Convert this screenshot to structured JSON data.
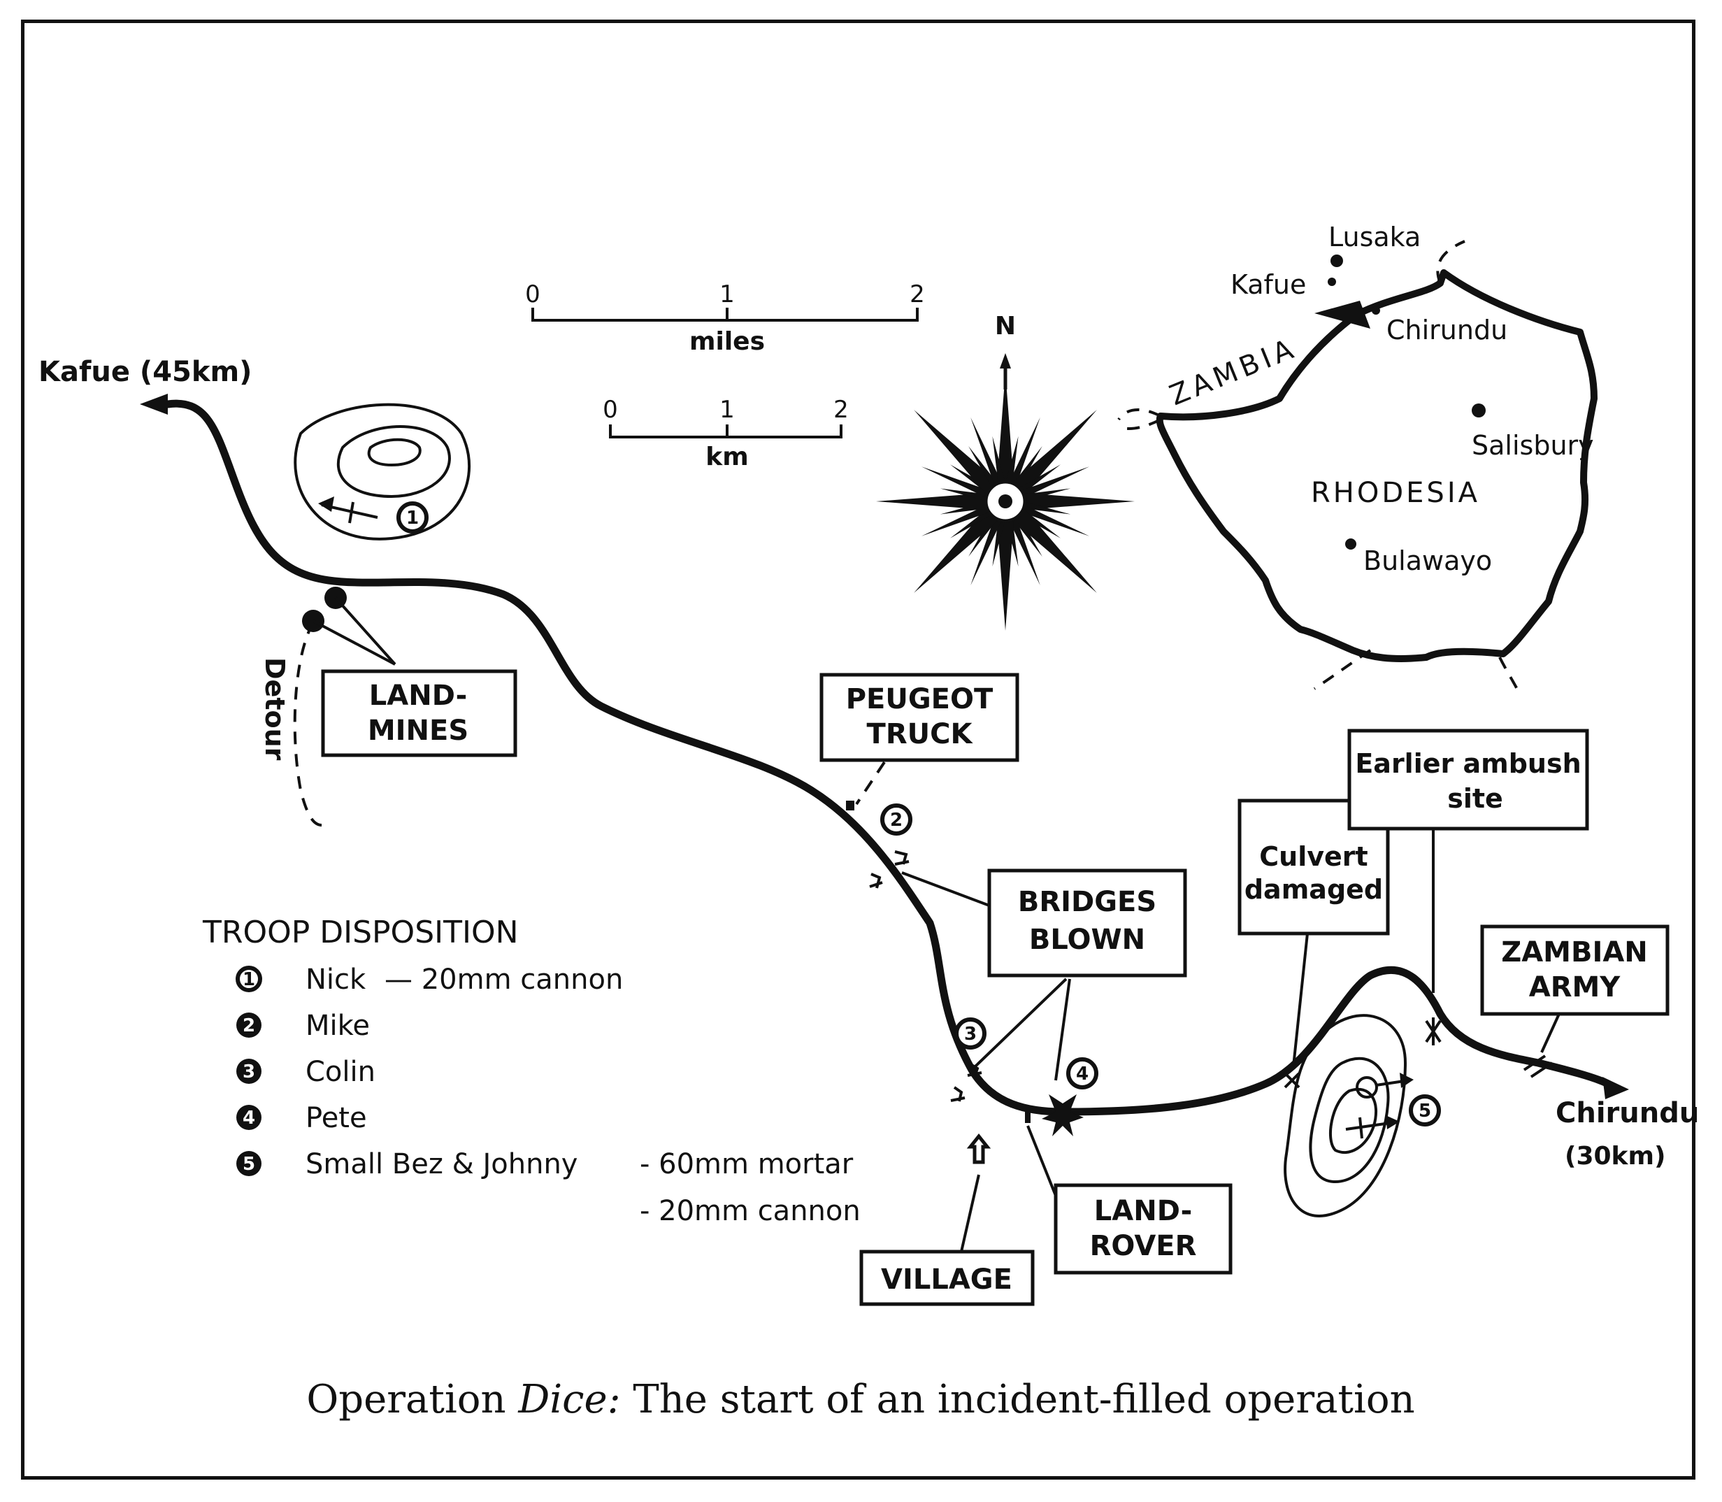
{
  "places": {
    "kafue_road": "Kafue (45km)",
    "chirundu_road": "Chirundu",
    "chirundu_dist": "(30km)",
    "detour": "Detour"
  },
  "scale": {
    "miles_ticks": [
      "0",
      "1",
      "2"
    ],
    "miles_unit": "miles",
    "km_ticks": [
      "0",
      "1",
      "2"
    ],
    "km_unit": "km"
  },
  "compass": {
    "north": "N"
  },
  "inset_map": {
    "zambia": "ZAMBIA",
    "rhodesia": "RHODESIA",
    "towns": [
      "Lusaka",
      "Kafue",
      "Chirundu",
      "Salisbury",
      "Bulawayo"
    ]
  },
  "callouts": {
    "land_mines": [
      "LAND-",
      "MINES"
    ],
    "peugeot_truck": [
      "PEUGEOT",
      "TRUCK"
    ],
    "bridges_blown": [
      "BRIDGES",
      "BLOWN"
    ],
    "village": "VILLAGE",
    "land_rover": [
      "LAND-",
      "ROVER"
    ],
    "culvert": [
      "Culvert",
      "damaged"
    ],
    "earlier_ambush": [
      "Earlier ambush",
      "site"
    ],
    "zambian_army": [
      "ZAMBIAN",
      "ARMY"
    ]
  },
  "troop_disposition": {
    "title": "TROOP DISPOSITION",
    "entries": [
      {
        "num": "1",
        "name": "Nick",
        "weapon": "— 20mm cannon"
      },
      {
        "num": "2",
        "name": "Mike",
        "weapon": ""
      },
      {
        "num": "3",
        "name": "Colin",
        "weapon": ""
      },
      {
        "num": "4",
        "name": "Pete",
        "weapon": ""
      },
      {
        "num": "5",
        "name": "Small Bez & Johnny",
        "weapon": "- 60mm mortar"
      }
    ],
    "extra_weapon": "- 20mm cannon"
  },
  "caption": {
    "prefix": "Operation ",
    "italic": "Dice:",
    "suffix": " The start of an incident-filled operation"
  }
}
